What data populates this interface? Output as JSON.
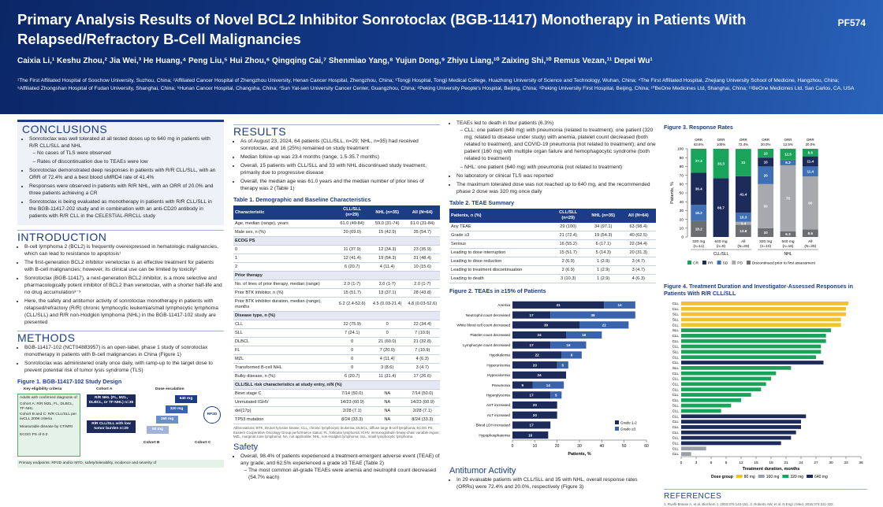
{
  "header": {
    "title": "Primary Analysis Results of Novel BCL2 Inhibitor Sonrotoclax (BGB-11417) Monotherapy in Patients With Relapsed/Refractory B-Cell Malignancies",
    "poster_id": "PF574",
    "authors": "Caixia Li,¹ Keshu Zhou,² Jia Wei,³ He Huang,⁴ Peng Liu,⁵ Hui Zhou,⁶ Qingqing Cai,⁷ Shenmiao Yang,⁸ Yujun Dong,⁹ Zhiyu Liang,¹⁰ Zaixing Shi,¹⁰ Remus Vezan,¹¹ Depei Wu¹",
    "affiliations": "¹The First Affiliated Hospital of Soochow University, Suzhou, China; ²Affiliated Cancer Hospital of Zhengzhou University, Henan Cancer Hospital, Zhengzhou, China; ³Tongji Hospital, Tongji Medical College, Huazhong University of Science and Technology, Wuhan, China; ⁴The First Affiliated Hospital, Zhejiang University School of Medicine, Hangzhou, China; ⁵Affiliated Zhongshan Hospital of Fudan University, Shanghai, China; ⁶Hunan Cancer Hospital, Changsha, China; ⁷Sun Yat-sen University Cancer Center, Guangzhou, China; ⁸Peking University People's Hospital, Beijing, China; ⁹Peking University First Hospital, Beijing, China; ¹⁰BeOne Medicines Ltd, Shanghai, China; ¹¹BeOne Medicines Ltd, San Carlos, CA, USA"
  },
  "conclusions": {
    "heading": "CONCLUSIONS",
    "items": [
      {
        "text": "Sonrotoclax was well tolerated at all tested doses up to 640 mg in patients with R/R CLL/SLL and NHL",
        "sub": [
          "No cases of TLS were observed",
          "Rates of discontinuation due to TEAEs were low"
        ]
      },
      {
        "text": "Sonrotoclax demonstrated deep responses in patients with R/R CLL/SLL, with an ORR of 72.4% and a best blood uMRD4 rate of 41.4%"
      },
      {
        "text": "Responses were observed in patients with R/R NHL, with an ORR of 20.0% and three patients achieving a CR"
      },
      {
        "text": "Sonrotoclax is being evaluated as monotherapy in patients with R/R CLL/SLL in the BGB-11417-202 study and in combination with an anti-CD20 antibody in patients with R/R CLL in the CELESTIAL-RRCLL study"
      }
    ]
  },
  "introduction": {
    "heading": "INTRODUCTION",
    "items": [
      {
        "text": "B-cell lymphoma 2 (BCL2) is frequently overexpressed in hematologic malignancies, which can lead to resistance to apoptosis¹"
      },
      {
        "text": "The first-generation BCL2 inhibitor venetoclax is an effective treatment for patients with B-cell malignancies; however, its clinical use can be limited by toxicity²"
      },
      {
        "text": "Sonrotoclax (BGB-11417), a next-generation BCL2 inhibitor, is a more selective and pharmacologically potent inhibitor of BCL2 than venetoclax, with a shorter half-life and no drug accumulation³⁻⁵"
      },
      {
        "text": "Here, the safety and antitumor activity of sonrotoclax monotherapy in patients with relapsed/refractory (R/R) chronic lymphocytic leukemia/small lymphocytic lymphoma (CLL/SLL) and R/R non-Hodgkin lymphoma (NHL) in the BGB-11417-102 study are presented"
      }
    ]
  },
  "methods": {
    "heading": "METHODS",
    "items": [
      {
        "text": "BGB-11417-102 (NCT04883957) is an open-label, phase 1 study of sonrotoclax monotherapy in patients with B-cell malignancies in China (Figure 1)"
      },
      {
        "text": "Sonrotoclax was administered orally once daily, with ramp-up to the target dose to prevent potential risk of tumor lysis syndrome (TLS)"
      }
    ]
  },
  "figure1": {
    "title": "Figure 1. BGB-11417-102 Study Design",
    "eligibility_heading": "Key eligibility criteria",
    "cohort_heading": "Cohort A",
    "dose_heading": "Dose escalation",
    "eligibility": [
      "Adults with confirmed diagnosis of:",
      "Cohort A: R/R MZL, FL, DLBCL, TF-NHL",
      "Cohort B and C: R/R CLL/SLL per iwCLL 2008 criteria",
      "Measurable disease by CT/MRI",
      "ECOG PS of 0-2"
    ],
    "cohort_a": "R/R NHL (FL, MZL, DLBCL, or TF-NHL) n=35",
    "cohort_b": "R/R CLL/SLL with low tumor burden n=29",
    "doses": [
      "640 mg",
      "320 mg",
      "160 mg",
      "80 mg"
    ],
    "rp2d": "RP2D",
    "cohort_b_label": "Cohort B",
    "cohort_c_label": "Cohort C",
    "endpoints": "Primary endpoints: RP2D and/or MTD, safety/tolerability, incidence and severity of"
  },
  "results": {
    "heading": "RESULTS",
    "items": [
      {
        "text": "As of August 23, 2024, 64 patients (CLL/SLL, n=29; NHL, n=35) had received sonrotoclax, and 16 (25%) remained on study treatment"
      },
      {
        "text": "Median follow-up was 23.4 months (range, 1.5-35.7 months)"
      },
      {
        "text": "Overall, 15 patients with CLL/SLL and 33 with NHL discontinued study treatment, primarily due to progressive disease"
      },
      {
        "text": "Overall, the median age was 61.0 years and the median number of prior lines of therapy was 2 (Table 1)"
      }
    ]
  },
  "table1": {
    "title": "Table 1. Demographic and Baseline Characteristics",
    "header": [
      "Characteristic",
      "CLL/SLL (n=29)",
      "NHL (n=35)",
      "All (N=64)"
    ],
    "rows": [
      [
        "Age, median (range), years",
        "61.0 (49-84)",
        "59.0 (31-74)",
        "61.0 (31-84)"
      ],
      [
        "Male sex, n (%)",
        "20 (69.0)",
        "15 (42.9)",
        "35 (54.7)"
      ],
      [
        "ECOG PS"
      ],
      [
        "0",
        "11 (37.9)",
        "12 (34.3)",
        "23 (35.9)"
      ],
      [
        "1",
        "12 (41.4)",
        "19 (54.3)",
        "31 (48.4)"
      ],
      [
        "2",
        "6 (20.7)",
        "4 (11.4)",
        "10 (15.6)"
      ],
      [
        "Prior therapy"
      ],
      [
        "No. of lines of prior therapy, median (range)",
        "2.0 (1-7)",
        "2.0 (1-7)",
        "2.0 (1-7)"
      ],
      [
        "Prior BTK inhibitor, n (%)",
        "15 (51.7)",
        "13 (37.1)",
        "28 (43.8)"
      ],
      [
        "Prior BTK inhibitor duration, median (range), months",
        "6.2 (2.4-52.6)",
        "4.5 (0.03-21.4)",
        "4.8 (0.03-52.6)"
      ],
      [
        "Disease type, n (%)"
      ],
      [
        "CLL",
        "22 (75.9)",
        "0",
        "22 (34.4)"
      ],
      [
        "SLL",
        "7 (24.1)",
        "0",
        "7 (10.9)"
      ],
      [
        "DLBCL",
        "0",
        "21 (60.0)",
        "21 (32.8)"
      ],
      [
        "FL",
        "0",
        "7 (20.0)",
        "7 (10.9)"
      ],
      [
        "MZL",
        "0",
        "4 (11.4)",
        "4 (6.3)"
      ],
      [
        "Transformed B-cell NHL",
        "0",
        "3 (8.6)",
        "3 (4.7)"
      ],
      [
        "Bulky disease, n (%)",
        "6 (20.7)",
        "11 (31.4)",
        "17 (26.6)"
      ],
      [
        "CLL/SLL risk characteristics at study entry, n/N (%)"
      ],
      [
        "Binet stage C",
        "7/14 (50.0)",
        "NA",
        "7/14 (50.0)"
      ],
      [
        "Unmutated IGHV",
        "14/23 (60.9)",
        "NA",
        "14/23 (60.9)"
      ],
      [
        "del(17p)",
        "2/28 (7.1)",
        "NA",
        "2/28 (7.1)"
      ],
      [
        "TP53 mutation",
        "8/24 (33.3)",
        "NA",
        "8/24 (33.3)"
      ]
    ],
    "footnote": "Abbreviations: BTK, Bruton tyrosine kinase; CLL, chronic lymphocytic leukemia; DLBCL, diffuse large B-cell lymphoma; ECOG PS, Eastern Cooperative Oncology Group performance status; FL, follicular lymphoma; IGHV, immunoglobulin heavy-chain variable region; MZL, marginal zone lymphoma; NA, not applicable; NHL, non-Hodgkin lymphoma; SLL, small lymphocytic lymphoma."
  },
  "safety": {
    "heading": "Safety",
    "items": [
      {
        "text": "Overall, 98.4% of patients experienced a treatment-emergent adverse event (TEAE) of any grade, and 62.5% experienced a grade ≥3 TEAE (Table 2)",
        "sub": [
          "The most common all-grade TEAEs were anemia and neutrophil count decreased (54.7% each)"
        ]
      }
    ]
  },
  "safety_cont": {
    "items": [
      {
        "text": "TEAEs led to death in four patients (6.3%)",
        "sub": [
          "CLL: one patient (640 mg) with pneumonia (related to treatment); one patient (320 mg; related to disease under study) with anemia, platelet count decreased (both related to treatment), and COVID-19 pneumonia (not related to treatment); and one patient (160 mg) with multiple organ failure and hemophagocytic syndrome (both related to treatment)",
          "NHL: one patient (640 mg) with pneumonia (not related to treatment)"
        ]
      },
      {
        "text": "No laboratory or clinical TLS was reported"
      },
      {
        "text": "The maximum tolerated dose was not reached up to 640 mg, and the recommended phase 2 dose was 320 mg once daily"
      }
    ]
  },
  "table2": {
    "title": "Table 2. TEAE Summary",
    "header": [
      "Patients, n (%)",
      "CLL/SLL (n=29)",
      "NHL (n=35)",
      "All (N=64)"
    ],
    "rows": [
      [
        "Any TEAE",
        "29 (100)",
        "34 (97.1)",
        "63 (98.4)"
      ],
      [
        "Grade ≥3",
        "21 (72.4)",
        "19 (54.3)",
        "40 (62.5)"
      ],
      [
        "Serious",
        "16 (55.2)",
        "6 (17.1)",
        "22 (34.4)"
      ],
      [
        "Leading to dose interruption",
        "15 (51.7)",
        "5 (14.3)",
        "20 (31.3)"
      ],
      [
        "Leading to dose reduction",
        "2 (6.9)",
        "1 (2.9)",
        "3 (4.7)"
      ],
      [
        "Leading to treatment discontinuation",
        "2 (6.9)",
        "1 (2.9)",
        "3 (4.7)"
      ],
      [
        "Leading to death",
        "3 (10.3)",
        "1 (2.9)",
        "4 (6.3)"
      ]
    ]
  },
  "antitumor": {
    "heading": "Antitumor Activity",
    "items": [
      {
        "text": "In 29 evaluable patients with CLL/SLL and 35 with NHL, overall response rates (ORRs) were 72.4% and 20.0%, respectively (Figure 3)"
      }
    ]
  },
  "chart_data": [
    {
      "type": "bar",
      "orientation": "horizontal",
      "stacked": true,
      "title": "Figure 2. TEAEs in ≥15% of Patients",
      "xlabel": "Patients, %",
      "categories": [
        "Anemia",
        "Neutrophil count decreased",
        "White blood cell count decreased",
        "Platelet count decreased",
        "Lymphocyte count decreased",
        "Hypokalemia",
        "Hyperuricemia",
        "Hypocalcemia",
        "Pneumonia",
        "Hyperglycemia",
        "AST increased",
        "ALT increased",
        "Blood LDH increased",
        "Hypophosphatemia"
      ],
      "series": [
        {
          "name": "Grade 1-2",
          "color": "#1c2b5a",
          "values": [
            41,
            17,
            30,
            24,
            17,
            22,
            20,
            24,
            9,
            17,
            20,
            20,
            17,
            16
          ]
        },
        {
          "name": "Grade ≥3",
          "color": "#3a63ad",
          "values": [
            14,
            38,
            22,
            16,
            16,
            9,
            5,
            0,
            14,
            5,
            0,
            0,
            0,
            0
          ]
        }
      ],
      "xlim": [
        0,
        60
      ],
      "xticks": [
        0,
        10,
        20,
        30,
        40,
        50,
        60
      ],
      "legend": "lower right"
    },
    {
      "type": "bar",
      "stacked": true,
      "title": "Figure 3. Response Rates",
      "ylabel": "Patients, %",
      "categories": [
        "320 mg",
        "640 mg",
        "All",
        "320 mg",
        "640 mg",
        "All"
      ],
      "category_ns": [
        "(n=11)",
        "(n=9)",
        "(N=29)",
        "(n=10)",
        "(n=16)",
        "(N=35)"
      ],
      "groups": [
        "CLL/SLL",
        "NHL"
      ],
      "orr_label": "ORR",
      "orr": [
        63.6,
        100,
        72.4,
        20.0,
        12.5,
        20.0
      ],
      "orr_value_labels": [
        "63.6%",
        "100%",
        "72.4%",
        "20.0%",
        "12.5%",
        "20.0%"
      ],
      "series": [
        {
          "name": "CR",
          "color": "#1aa35a",
          "values": [
            27.3,
            33.3,
            31.0,
            10,
            12.5,
            8.6
          ]
        },
        {
          "name": "PR",
          "color": "#1c2b5a",
          "values": [
            36.4,
            66.7,
            41.4,
            10,
            0,
            11.4
          ]
        },
        {
          "name": "SD",
          "color": "#3f6fb5",
          "values": [
            18.2,
            0,
            10.3,
            20,
            6.3,
            11.4
          ]
        },
        {
          "name": "PD",
          "color": "#a7a9ac",
          "values": [
            0,
            0,
            3.4,
            50,
            75,
            60
          ]
        },
        {
          "name": "Discontinued prior to first assessment",
          "color": "#6d6e71",
          "values": [
            18.2,
            0,
            13.8,
            10,
            6.3,
            8.6
          ]
        }
      ],
      "ylim": [
        0,
        100
      ],
      "yticks": [
        0,
        10,
        20,
        30,
        40,
        50,
        60,
        70,
        80,
        90,
        100
      ],
      "legend": "bottom"
    },
    {
      "type": "swimmer",
      "title": "Figure 4. Treatment Duration and Investigator-Assessed Responses in Patients With R/R CLL/SLL",
      "xlabel": "Treatment duration, months",
      "legend_title": "Dose group",
      "doses": [
        {
          "name": "80 mg",
          "color": "#f2c12e"
        },
        {
          "name": "160 mg",
          "color": "#9aa0a8"
        },
        {
          "name": "320 mg",
          "color": "#1aa35a"
        },
        {
          "name": "640 mg",
          "color": "#1c2b5a"
        }
      ],
      "rows": [
        {
          "label": "CLL",
          "dose": "80 mg",
          "months": 33.5
        },
        {
          "label": "CLL",
          "dose": "80 mg",
          "months": 33
        },
        {
          "label": "SLL",
          "dose": "80 mg",
          "months": 33
        },
        {
          "label": "SLL",
          "dose": "80 mg",
          "months": 32
        },
        {
          "label": "CLL",
          "dose": "80 mg",
          "months": 32
        },
        {
          "label": "SLL",
          "dose": "320 mg",
          "months": 30
        },
        {
          "label": "CLL",
          "dose": "320 mg",
          "months": 29
        },
        {
          "label": "CLL",
          "dose": "320 mg",
          "months": 29
        },
        {
          "label": "CLL",
          "dose": "320 mg",
          "months": 28
        },
        {
          "label": "SLL",
          "dose": "320 mg",
          "months": 28
        },
        {
          "label": "CLL",
          "dose": "320 mg",
          "months": 27
        },
        {
          "label": "CLL",
          "dose": "640 mg",
          "months": 28.5
        },
        {
          "label": "SLL",
          "dose": "320 mg",
          "months": 22
        },
        {
          "label": "CLL",
          "dose": "320 mg",
          "months": 19
        },
        {
          "label": "CLL",
          "dose": "320 mg",
          "months": 18
        },
        {
          "label": "CLL",
          "dose": "320 mg",
          "months": 17
        },
        {
          "label": "CLL",
          "dose": "320 mg",
          "months": 16
        },
        {
          "label": "CLL",
          "dose": "320 mg",
          "months": 14
        },
        {
          "label": "CLL",
          "dose": "320 mg",
          "months": 12
        },
        {
          "label": "SLL",
          "dose": "320 mg",
          "months": 10
        },
        {
          "label": "CLL",
          "dose": "320 mg",
          "months": 8
        },
        {
          "label": "CLL",
          "dose": "640 mg",
          "months": 25
        },
        {
          "label": "CLL",
          "dose": "640 mg",
          "months": 24
        },
        {
          "label": "CLL",
          "dose": "640 mg",
          "months": 24
        },
        {
          "label": "CLL",
          "dose": "640 mg",
          "months": 23
        },
        {
          "label": "CLL",
          "dose": "640 mg",
          "months": 22
        },
        {
          "label": "CLL",
          "dose": "640 mg",
          "months": 20
        },
        {
          "label": "CLL",
          "dose": "160 mg",
          "months": 5
        },
        {
          "label": "CLL",
          "dose": "160 mg",
          "months": 2
        }
      ],
      "xlim": [
        0,
        36
      ],
      "xticks": [
        0,
        3,
        6,
        9,
        12,
        15,
        18,
        21,
        24,
        27,
        30,
        33,
        36
      ]
    }
  ],
  "references": {
    "heading": "REFERENCES",
    "text": "1. Ruefli-Brasse A, et al. Biochem J. 2003;376:143-151. 2. Roberts AW, et al. N Engl J Med. 2016;374:311-322."
  }
}
